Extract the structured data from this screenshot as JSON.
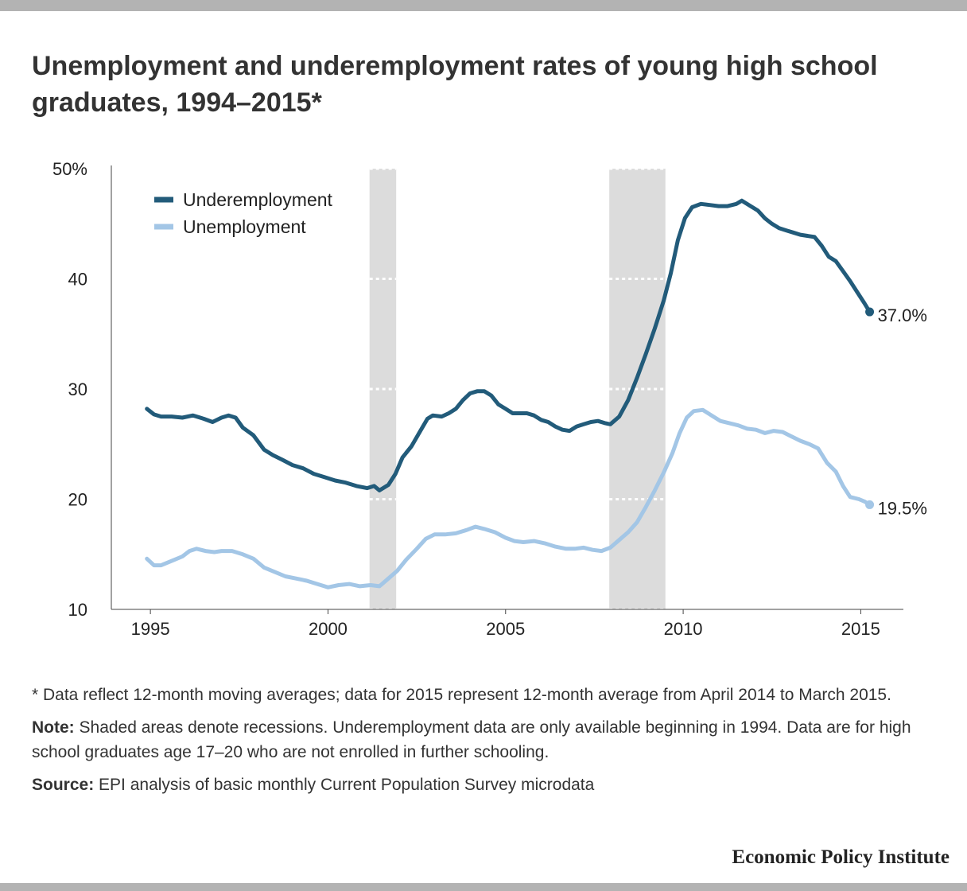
{
  "title": "Unemployment and underemployment rates of young high school graduates, 1994–2015*",
  "footnote": "* Data reflect 12-month moving averages; data for 2015 represent 12-month average from April 2014 to March 2015.",
  "note": {
    "label": "Note:",
    "text": " Shaded areas denote recessions. Underemployment data are only available beginning in 1994. Data are for high school graduates age 17–20 who are not enrolled in further schooling."
  },
  "source": {
    "label": "Source:",
    "text": " EPI analysis of basic monthly Current Population Survey microdata"
  },
  "brand": "Economic Policy Institute",
  "chart_data": {
    "type": "line",
    "x_range": [
      1993.9,
      2016.2
    ],
    "ylim": [
      10,
      50
    ],
    "y_ticks": [
      {
        "value": 50,
        "label": "50%"
      },
      {
        "value": 40,
        "label": "40"
      },
      {
        "value": 30,
        "label": "30"
      },
      {
        "value": 20,
        "label": "20"
      },
      {
        "value": 10,
        "label": "10"
      }
    ],
    "x_ticks": [
      {
        "value": 1995,
        "label": "1995"
      },
      {
        "value": 2000,
        "label": "2000"
      },
      {
        "value": 2005,
        "label": "2005"
      },
      {
        "value": 2010,
        "label": "2010"
      },
      {
        "value": 2015,
        "label": "2015"
      }
    ],
    "recessions": [
      [
        2001.17,
        2001.92
      ],
      [
        2007.92,
        2009.5
      ]
    ],
    "legend_position": "top-left",
    "series": [
      {
        "name": "Underemployment",
        "color": "#225b7a",
        "end_label": "37.0%",
        "points": [
          [
            1994.9,
            28.2
          ],
          [
            1995.1,
            27.7
          ],
          [
            1995.3,
            27.5
          ],
          [
            1995.6,
            27.5
          ],
          [
            1995.9,
            27.4
          ],
          [
            1996.2,
            27.6
          ],
          [
            1996.5,
            27.3
          ],
          [
            1996.75,
            27.0
          ],
          [
            1997.0,
            27.4
          ],
          [
            1997.2,
            27.6
          ],
          [
            1997.4,
            27.4
          ],
          [
            1997.6,
            26.5
          ],
          [
            1997.9,
            25.8
          ],
          [
            1998.2,
            24.5
          ],
          [
            1998.45,
            24.0
          ],
          [
            1998.7,
            23.6
          ],
          [
            1999.0,
            23.1
          ],
          [
            1999.3,
            22.8
          ],
          [
            1999.6,
            22.3
          ],
          [
            1999.9,
            22.0
          ],
          [
            2000.2,
            21.7
          ],
          [
            2000.5,
            21.5
          ],
          [
            2000.8,
            21.2
          ],
          [
            2001.1,
            21.0
          ],
          [
            2001.3,
            21.2
          ],
          [
            2001.45,
            20.8
          ],
          [
            2001.7,
            21.3
          ],
          [
            2001.9,
            22.3
          ],
          [
            2002.1,
            23.8
          ],
          [
            2002.35,
            24.8
          ],
          [
            2002.6,
            26.2
          ],
          [
            2002.8,
            27.3
          ],
          [
            2002.95,
            27.6
          ],
          [
            2003.2,
            27.5
          ],
          [
            2003.4,
            27.8
          ],
          [
            2003.6,
            28.2
          ],
          [
            2003.8,
            29.0
          ],
          [
            2004.0,
            29.6
          ],
          [
            2004.2,
            29.8
          ],
          [
            2004.4,
            29.8
          ],
          [
            2004.6,
            29.4
          ],
          [
            2004.8,
            28.6
          ],
          [
            2005.0,
            28.2
          ],
          [
            2005.2,
            27.8
          ],
          [
            2005.4,
            27.8
          ],
          [
            2005.6,
            27.8
          ],
          [
            2005.8,
            27.6
          ],
          [
            2006.0,
            27.2
          ],
          [
            2006.2,
            27.0
          ],
          [
            2006.4,
            26.6
          ],
          [
            2006.6,
            26.3
          ],
          [
            2006.8,
            26.2
          ],
          [
            2007.0,
            26.6
          ],
          [
            2007.2,
            26.8
          ],
          [
            2007.4,
            27.0
          ],
          [
            2007.6,
            27.1
          ],
          [
            2007.8,
            26.9
          ],
          [
            2007.95,
            26.8
          ],
          [
            2008.2,
            27.5
          ],
          [
            2008.45,
            29.0
          ],
          [
            2008.7,
            31.0
          ],
          [
            2008.95,
            33.2
          ],
          [
            2009.2,
            35.5
          ],
          [
            2009.45,
            38.0
          ],
          [
            2009.65,
            40.5
          ],
          [
            2009.85,
            43.5
          ],
          [
            2010.05,
            45.5
          ],
          [
            2010.25,
            46.5
          ],
          [
            2010.5,
            46.8
          ],
          [
            2010.75,
            46.7
          ],
          [
            2011.0,
            46.6
          ],
          [
            2011.25,
            46.6
          ],
          [
            2011.5,
            46.8
          ],
          [
            2011.65,
            47.1
          ],
          [
            2011.9,
            46.6
          ],
          [
            2012.1,
            46.2
          ],
          [
            2012.3,
            45.5
          ],
          [
            2012.5,
            45.0
          ],
          [
            2012.7,
            44.6
          ],
          [
            2012.9,
            44.4
          ],
          [
            2013.1,
            44.2
          ],
          [
            2013.3,
            44.0
          ],
          [
            2013.5,
            43.9
          ],
          [
            2013.7,
            43.8
          ],
          [
            2013.9,
            43.0
          ],
          [
            2014.1,
            42.0
          ],
          [
            2014.3,
            41.6
          ],
          [
            2014.5,
            40.7
          ],
          [
            2014.7,
            39.8
          ],
          [
            2014.9,
            38.8
          ],
          [
            2015.1,
            37.8
          ],
          [
            2015.25,
            37.0
          ]
        ]
      },
      {
        "name": "Unemployment",
        "color": "#a3c6e6",
        "end_label": "19.5%",
        "points": [
          [
            1994.9,
            14.6
          ],
          [
            1995.1,
            14.0
          ],
          [
            1995.3,
            14.0
          ],
          [
            1995.6,
            14.4
          ],
          [
            1995.9,
            14.8
          ],
          [
            1996.1,
            15.3
          ],
          [
            1996.3,
            15.5
          ],
          [
            1996.55,
            15.3
          ],
          [
            1996.8,
            15.2
          ],
          [
            1997.0,
            15.3
          ],
          [
            1997.3,
            15.3
          ],
          [
            1997.6,
            15.0
          ],
          [
            1997.9,
            14.6
          ],
          [
            1998.2,
            13.8
          ],
          [
            1998.5,
            13.4
          ],
          [
            1998.8,
            13.0
          ],
          [
            1999.1,
            12.8
          ],
          [
            1999.4,
            12.6
          ],
          [
            1999.7,
            12.3
          ],
          [
            2000.0,
            12.0
          ],
          [
            2000.3,
            12.2
          ],
          [
            2000.6,
            12.3
          ],
          [
            2000.9,
            12.1
          ],
          [
            2001.2,
            12.2
          ],
          [
            2001.45,
            12.1
          ],
          [
            2001.7,
            12.8
          ],
          [
            2001.95,
            13.5
          ],
          [
            2002.2,
            14.5
          ],
          [
            2002.5,
            15.5
          ],
          [
            2002.75,
            16.4
          ],
          [
            2003.0,
            16.8
          ],
          [
            2003.3,
            16.8
          ],
          [
            2003.6,
            16.9
          ],
          [
            2003.9,
            17.2
          ],
          [
            2004.15,
            17.5
          ],
          [
            2004.4,
            17.3
          ],
          [
            2004.7,
            17.0
          ],
          [
            2005.0,
            16.5
          ],
          [
            2005.25,
            16.2
          ],
          [
            2005.5,
            16.1
          ],
          [
            2005.8,
            16.2
          ],
          [
            2006.1,
            16.0
          ],
          [
            2006.4,
            15.7
          ],
          [
            2006.7,
            15.5
          ],
          [
            2006.95,
            15.5
          ],
          [
            2007.2,
            15.6
          ],
          [
            2007.45,
            15.4
          ],
          [
            2007.7,
            15.3
          ],
          [
            2007.95,
            15.6
          ],
          [
            2008.2,
            16.3
          ],
          [
            2008.45,
            17.0
          ],
          [
            2008.7,
            17.9
          ],
          [
            2008.95,
            19.3
          ],
          [
            2009.2,
            20.8
          ],
          [
            2009.45,
            22.4
          ],
          [
            2009.7,
            24.2
          ],
          [
            2009.9,
            26.0
          ],
          [
            2010.1,
            27.4
          ],
          [
            2010.3,
            28.0
          ],
          [
            2010.55,
            28.1
          ],
          [
            2010.8,
            27.6
          ],
          [
            2011.05,
            27.1
          ],
          [
            2011.3,
            26.9
          ],
          [
            2011.55,
            26.7
          ],
          [
            2011.8,
            26.4
          ],
          [
            2012.05,
            26.3
          ],
          [
            2012.3,
            26.0
          ],
          [
            2012.55,
            26.2
          ],
          [
            2012.8,
            26.1
          ],
          [
            2013.05,
            25.7
          ],
          [
            2013.3,
            25.3
          ],
          [
            2013.55,
            25.0
          ],
          [
            2013.8,
            24.6
          ],
          [
            2014.05,
            23.3
          ],
          [
            2014.3,
            22.5
          ],
          [
            2014.5,
            21.2
          ],
          [
            2014.7,
            20.2
          ],
          [
            2014.95,
            20.0
          ],
          [
            2015.1,
            19.8
          ],
          [
            2015.25,
            19.5
          ]
        ]
      }
    ]
  }
}
